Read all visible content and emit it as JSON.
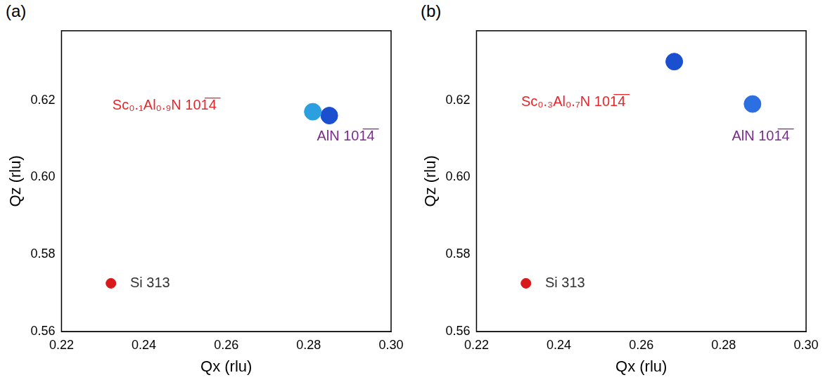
{
  "chart_data": [
    {
      "type": "scatter",
      "title": "(a)",
      "x_label": "Qx (rlu)",
      "y_label": "Qz (rlu)",
      "xlim": [
        0.22,
        0.3
      ],
      "xticks": [
        0.22,
        0.24,
        0.26,
        0.28,
        {
          "value": 0.3,
          "label": "0.30"
        }
      ],
      "ylim": [
        0.56,
        0.638
      ],
      "yticks": [
        0.56,
        0.58,
        {
          "value": 0.6,
          "label": "0.60"
        },
        0.62
      ],
      "grid": false,
      "series": [
        {
          "name": "Si 313",
          "color": "#d7191c",
          "marker": "circle",
          "values": [
            {
              "x": 0.232,
              "y": 0.5725
            }
          ]
        },
        {
          "name": "Sc₀.₁Al₀.₉N 101̅4̅",
          "color": "#2b9fe0",
          "marker": "circle",
          "values": [
            {
              "x": 0.281,
              "y": 0.617
            }
          ]
        },
        {
          "name": "AlN 101̅4̅",
          "color": "#1a4fd0",
          "marker": "circle",
          "values": [
            {
              "x": 0.285,
              "y": 0.616
            }
          ]
        }
      ],
      "annotations": [
        {
          "text": "Sc₀.₁Al₀.₉N 101̅4̅",
          "x": 0.245,
          "y": 0.6185,
          "color": "#e8262a"
        },
        {
          "text": "AlN 101̅4̅",
          "x": 0.289,
          "y": 0.6105,
          "color": "#7a2d8c"
        },
        {
          "text": "Si 313",
          "x": 0.2415,
          "y": 0.5725,
          "color": "#333333"
        }
      ]
    },
    {
      "type": "scatter",
      "title": "(b)",
      "x_label": "Qx (rlu)",
      "y_label": "Qz (rlu)",
      "xlim": [
        0.22,
        0.3
      ],
      "xticks": [
        0.22,
        0.24,
        0.26,
        0.28,
        {
          "value": 0.3,
          "label": "0.30"
        }
      ],
      "ylim": [
        0.56,
        0.638
      ],
      "yticks": [
        0.56,
        0.58,
        {
          "value": 0.6,
          "label": "0.60"
        },
        0.62
      ],
      "grid": false,
      "series": [
        {
          "name": "Si 313",
          "color": "#d7191c",
          "marker": "circle",
          "values": [
            {
              "x": 0.232,
              "y": 0.5725
            }
          ]
        },
        {
          "name": "Sc₀.₃Al₀.₇N 101̅4̅",
          "color": "#1a4fd0",
          "marker": "circle",
          "values": [
            {
              "x": 0.268,
              "y": 0.63
            }
          ]
        },
        {
          "name": "AlN 101̅4̅",
          "color": "#2b6fe0",
          "marker": "circle",
          "values": [
            {
              "x": 0.287,
              "y": 0.619
            }
          ]
        }
      ],
      "annotations": [
        {
          "text": "Sc₀.₃Al₀.₇N 101̅4̅",
          "x": 0.2435,
          "y": 0.6195,
          "color": "#e8262a"
        },
        {
          "text": "AlN 101̅4̅",
          "x": 0.289,
          "y": 0.6105,
          "color": "#7a2d8c"
        },
        {
          "text": "Si 313",
          "x": 0.2415,
          "y": 0.5725,
          "color": "#333333"
        }
      ]
    }
  ]
}
